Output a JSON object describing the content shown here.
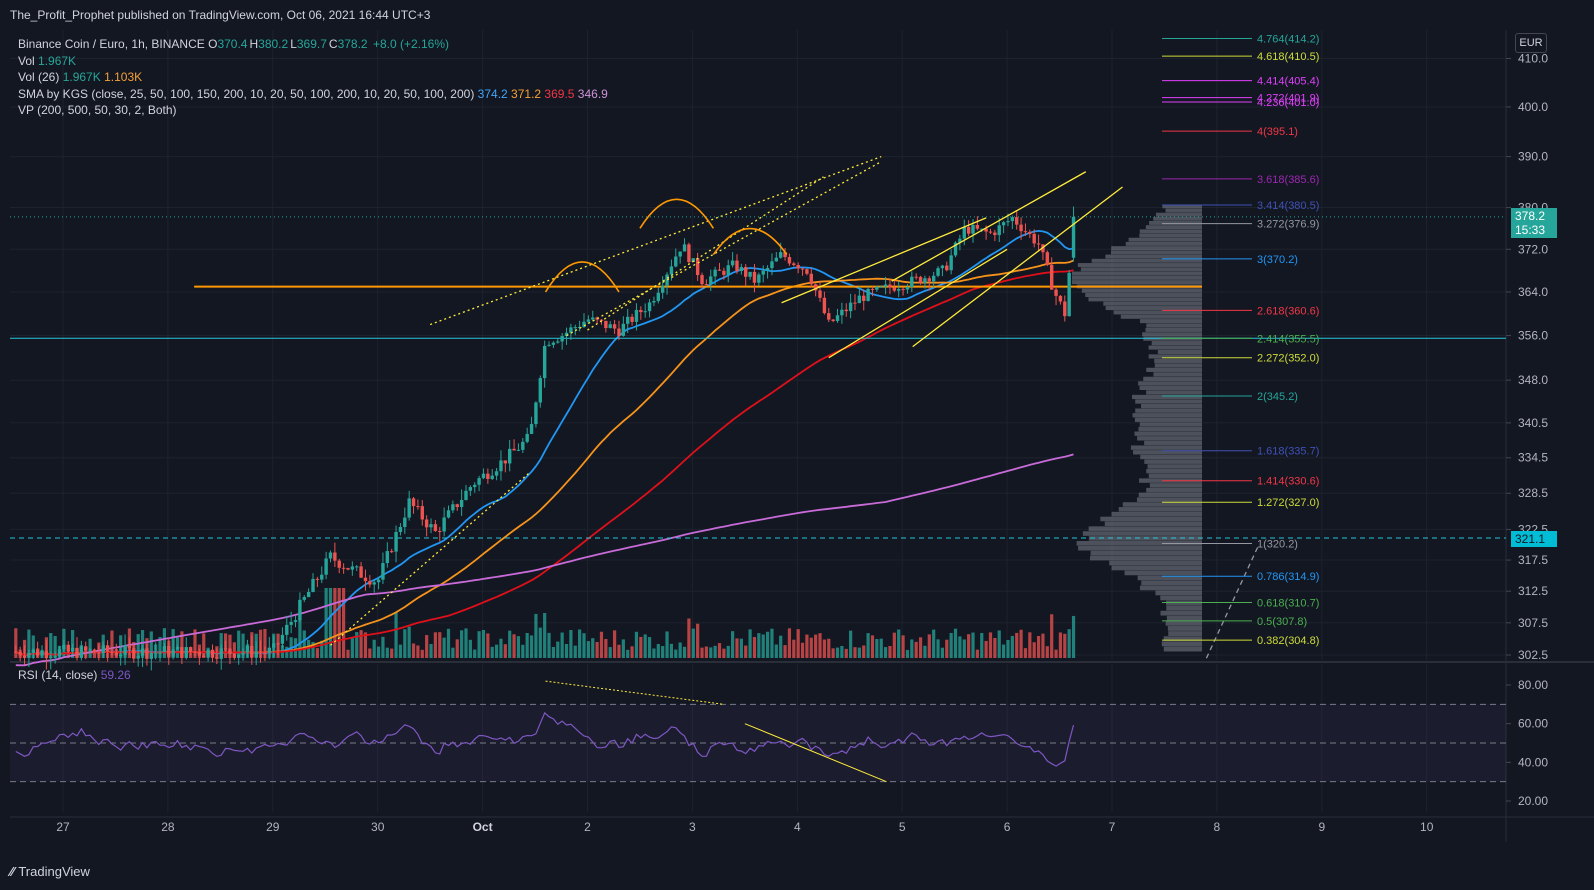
{
  "header": {
    "published": "The_Profit_Prophet published on TradingView.com, Oct 06, 2021 16:44 UTC+3"
  },
  "legend": {
    "symbol": "Binance Coin / Euro, 1h, BINANCE",
    "ohlc": [
      {
        "k": "O",
        "v": "370.4"
      },
      {
        "k": "H",
        "v": "380.2"
      },
      {
        "k": "L",
        "v": "369.7"
      },
      {
        "k": "C",
        "v": "378.2"
      }
    ],
    "change": "+8.0 (+2.16%)",
    "vol_label": "Vol",
    "vol_value": "1.967K",
    "vol26_label": "Vol (26)",
    "vol26_value1": "1.967K",
    "vol26_value2": "1.103K",
    "sma_label": "SMA by KGS (close, 25, 50, 100, 150, 200, 10, 20, 50, 100, 200, 10, 20, 50, 100, 200)",
    "sma_values": [
      "374.2",
      "371.2",
      "369.5",
      "346.9"
    ],
    "vp_label": "VP (200, 500, 50, 30, 2, Both)",
    "rsi_label": "RSI (14, close)",
    "rsi_value": "59.26"
  },
  "currency": "EUR",
  "current_price_badge": {
    "price": "378.2",
    "countdown": "15:33"
  },
  "level_badge": "321.1",
  "footer": {
    "brand": "TradingView"
  },
  "colors": {
    "bg": "#131722",
    "up": "#26a69a",
    "down": "#ef5350",
    "sma_blue": "#2196f3",
    "sma_orange": "#f7931a",
    "sma_red": "#e0101a",
    "sma_purple": "#c86bd8",
    "hline_orange": "#ff9800",
    "hline_teal": "#26c6da",
    "rsi": "#7e57c2",
    "channel": "#ffeb3b"
  },
  "chart_data": [
    {
      "type": "candlestick",
      "title": "Binance Coin / Euro, 1h, BINANCE",
      "x_ticks": [
        "27",
        "28",
        "29",
        "30",
        "Oct",
        "2",
        "3",
        "4",
        "5",
        "6",
        "7",
        "8",
        "9",
        "10"
      ],
      "y_ticks": [
        410.0,
        400.0,
        390.0,
        380.0,
        372.0,
        364.0,
        356.0,
        348.0,
        340.5,
        334.5,
        328.5,
        322.5,
        317.5,
        312.5,
        307.5,
        302.5
      ],
      "y_scale": "log",
      "ylim": [
        302.5,
        412
      ],
      "key_prices": [
        {
          "day": 27.0,
          "price": 303
        },
        {
          "day": 28.0,
          "price": 303
        },
        {
          "day": 29.0,
          "price": 303
        },
        {
          "day": 29.55,
          "price": 318
        },
        {
          "day": 29.75,
          "price": 316
        },
        {
          "day": 30.0,
          "price": 314
        },
        {
          "day": 30.3,
          "price": 327
        },
        {
          "day": 30.55,
          "price": 322
        },
        {
          "day": 30.9,
          "price": 330
        },
        {
          "day": 31.2,
          "price": 334
        },
        {
          "day": 31.45,
          "price": 338
        },
        {
          "day": 31.6,
          "price": 355
        },
        {
          "day": 31.75,
          "price": 356
        },
        {
          "day": 32.0,
          "price": 359
        },
        {
          "day": 32.3,
          "price": 357
        },
        {
          "day": 32.6,
          "price": 362
        },
        {
          "day": 32.9,
          "price": 373
        },
        {
          "day": 33.1,
          "price": 366
        },
        {
          "day": 33.4,
          "price": 369
        },
        {
          "day": 33.6,
          "price": 366
        },
        {
          "day": 33.85,
          "price": 371
        },
        {
          "day": 34.1,
          "price": 368
        },
        {
          "day": 34.3,
          "price": 358
        },
        {
          "day": 34.6,
          "price": 363
        },
        {
          "day": 34.9,
          "price": 365
        },
        {
          "day": 35.1,
          "price": 366
        },
        {
          "day": 35.4,
          "price": 368
        },
        {
          "day": 35.6,
          "price": 376
        },
        {
          "day": 35.85,
          "price": 375
        },
        {
          "day": 36.05,
          "price": 378
        },
        {
          "day": 36.3,
          "price": 373
        },
        {
          "day": 36.45,
          "price": 364
        },
        {
          "day": 36.55,
          "price": 360
        },
        {
          "day": 36.65,
          "price": 378.2
        }
      ],
      "sma_lines": [
        {
          "name": "374.2",
          "color": "#2196f3"
        },
        {
          "name": "371.2",
          "color": "#f7931a"
        },
        {
          "name": "369.5",
          "color": "#e0101a"
        },
        {
          "name": "346.9",
          "color": "#c86bd8"
        }
      ],
      "fib_levels": [
        {
          "label": "4.764(414.2)",
          "price": 414.2,
          "color": "#26a69a"
        },
        {
          "label": "4.618(410.5)",
          "price": 410.5,
          "color": "#cddc39"
        },
        {
          "label": "4.414(405.4)",
          "price": 405.4,
          "color": "#e040fb"
        },
        {
          "label": "4.272(401.9)",
          "price": 401.9,
          "color": "#e040fb"
        },
        {
          "label": "4.236(401.0)",
          "price": 401.0,
          "color": "#e040fb"
        },
        {
          "label": "4(395.1)",
          "price": 395.1,
          "color": "#f23645"
        },
        {
          "label": "3.618(385.6)",
          "price": 385.6,
          "color": "#9c27b0"
        },
        {
          "label": "3.414(380.5)",
          "price": 380.5,
          "color": "#3f51b5"
        },
        {
          "label": "3.272(376.9)",
          "price": 376.9,
          "color": "#9598a1"
        },
        {
          "label": "3(370.2)",
          "price": 370.2,
          "color": "#2196f3"
        },
        {
          "label": "2.618(360.6)",
          "price": 360.6,
          "color": "#f23645"
        },
        {
          "label": "2.414(355.5)",
          "price": 355.5,
          "color": "#4caf50"
        },
        {
          "label": "2.272(352.0)",
          "price": 352.0,
          "color": "#cddc39"
        },
        {
          "label": "2(345.2)",
          "price": 345.2,
          "color": "#26a69a"
        },
        {
          "label": "1.618(335.7)",
          "price": 335.7,
          "color": "#3f51b5"
        },
        {
          "label": "1.414(330.6)",
          "price": 330.6,
          "color": "#f23645"
        },
        {
          "label": "1.272(327.0)",
          "price": 327.0,
          "color": "#cddc39"
        },
        {
          "label": "1(320.2)",
          "price": 320.2,
          "color": "#9598a1"
        },
        {
          "label": "0.786(314.9)",
          "price": 314.9,
          "color": "#2196f3"
        },
        {
          "label": "0.618(310.7)",
          "price": 310.7,
          "color": "#4caf50"
        },
        {
          "label": "0.5(307.8)",
          "price": 307.8,
          "color": "#4caf50"
        },
        {
          "label": "0.382(304.8)",
          "price": 304.8,
          "color": "#cddc39"
        }
      ],
      "horizontal_lines": [
        365.0,
        355.5,
        321.1
      ],
      "current_price": 378.2
    },
    {
      "type": "line",
      "title": "RSI (14, close)",
      "y_ticks": [
        80.0,
        60.0,
        40.0,
        20.0
      ],
      "ylim": [
        15,
        88
      ],
      "bands": [
        70,
        50,
        30
      ],
      "last": 59.26
    }
  ]
}
